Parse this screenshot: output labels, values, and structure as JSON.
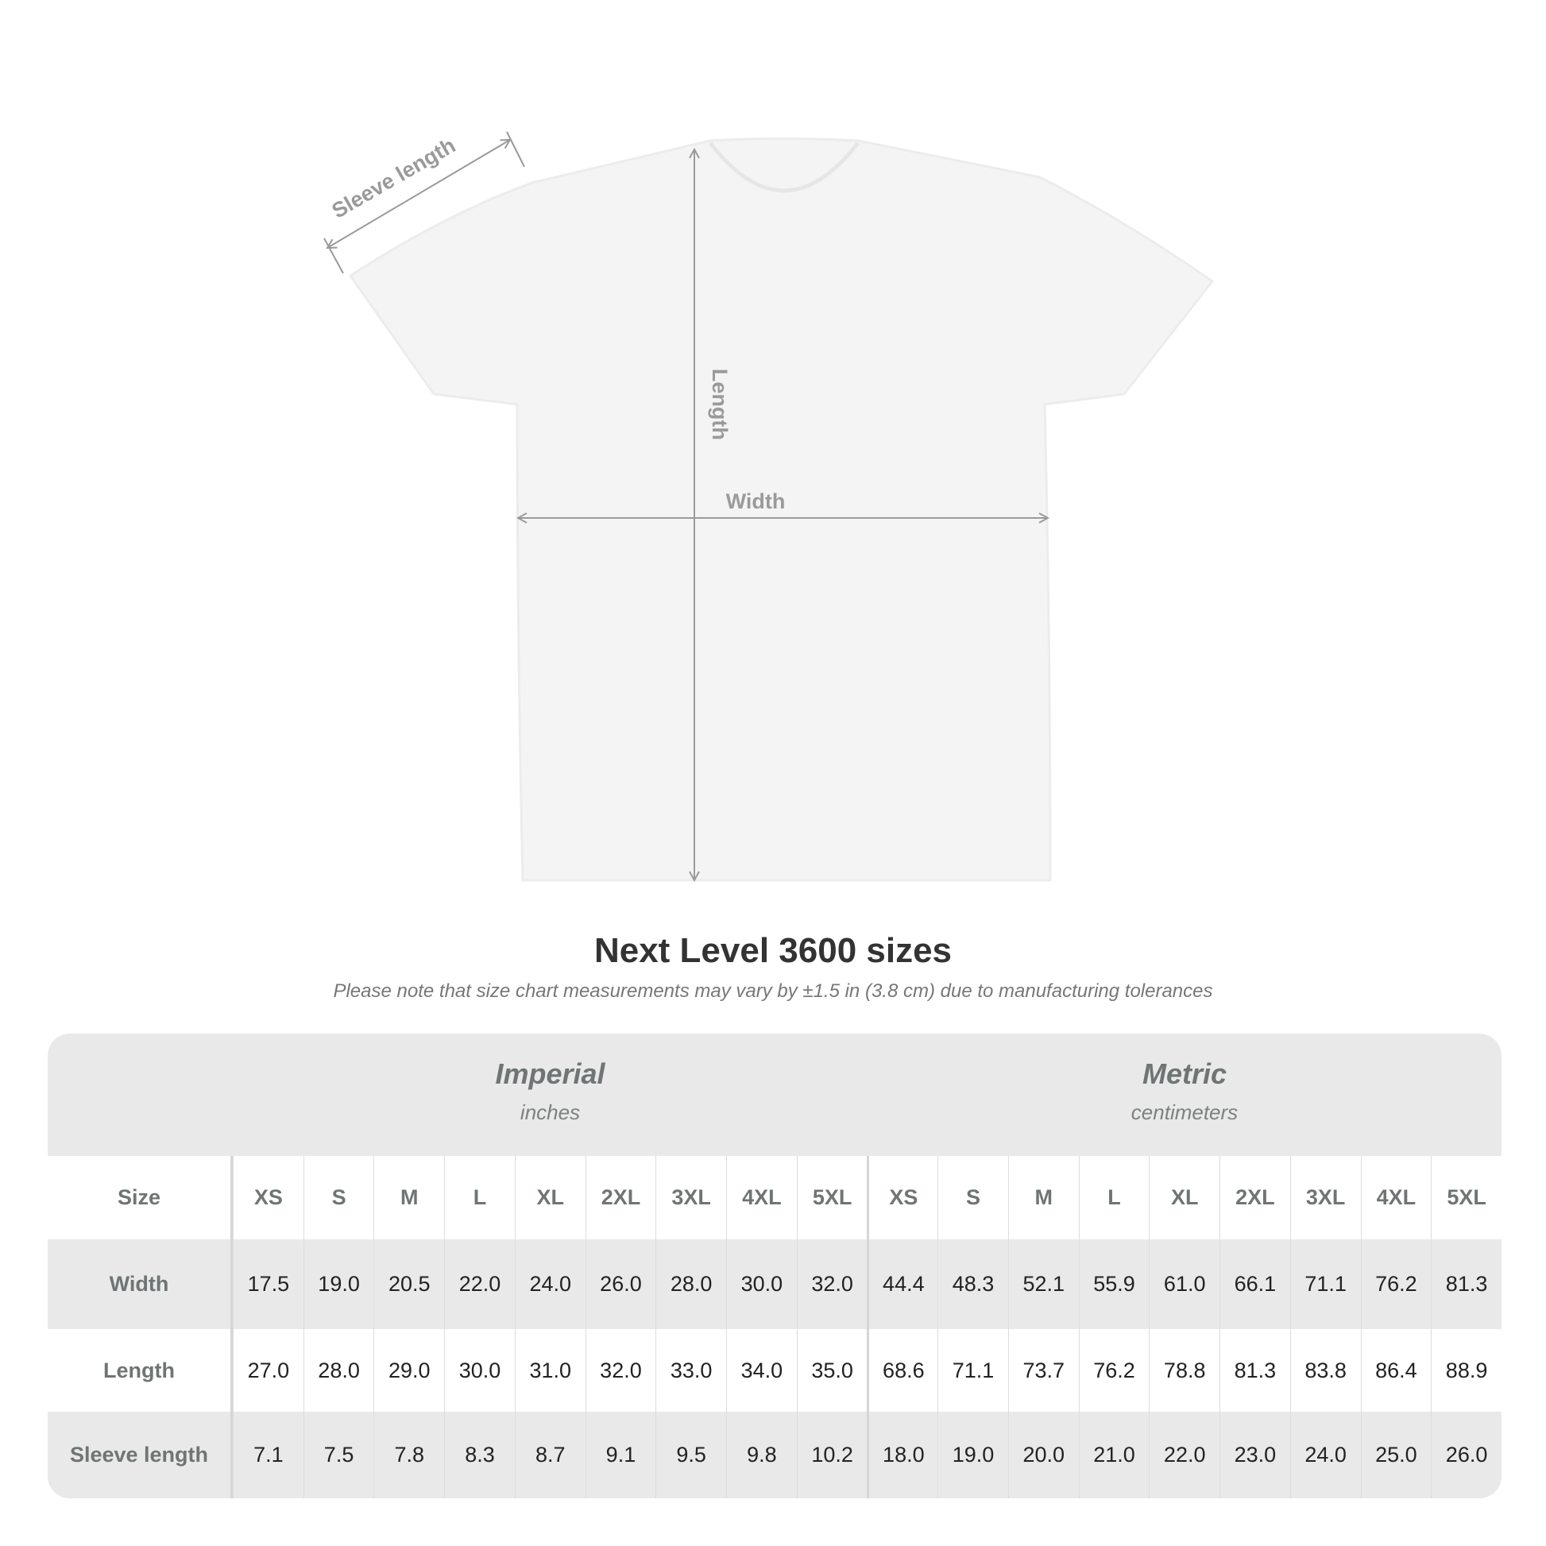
{
  "diagram": {
    "labels": {
      "sleeve": "Sleeve length",
      "length": "Length",
      "width": "Width"
    },
    "shirt_color": "#f4f4f4",
    "arrow_color": "#9a9a9a"
  },
  "title": "Next Level 3600 sizes",
  "subtitle": "Please note that size chart measurements may vary by ±1.5 in (3.8 cm) due to manufacturing tolerances",
  "table": {
    "imperial": {
      "label": "Imperial",
      "unit": "inches"
    },
    "metric": {
      "label": "Metric",
      "unit": "centimeters"
    },
    "size_label": "Size",
    "sizes": [
      "XS",
      "S",
      "M",
      "L",
      "XL",
      "2XL",
      "3XL",
      "4XL",
      "5XL"
    ],
    "rows": [
      {
        "label": "Width",
        "imperial": [
          "17.5",
          "19.0",
          "20.5",
          "22.0",
          "24.0",
          "26.0",
          "28.0",
          "30.0",
          "32.0"
        ],
        "metric": [
          "44.4",
          "48.3",
          "52.1",
          "55.9",
          "61.0",
          "66.1",
          "71.1",
          "76.2",
          "81.3"
        ]
      },
      {
        "label": "Length",
        "imperial": [
          "27.0",
          "28.0",
          "29.0",
          "30.0",
          "31.0",
          "32.0",
          "33.0",
          "34.0",
          "35.0"
        ],
        "metric": [
          "68.6",
          "71.1",
          "73.7",
          "76.2",
          "78.8",
          "81.3",
          "83.8",
          "86.4",
          "88.9"
        ]
      },
      {
        "label": "Sleeve length",
        "imperial": [
          "7.1",
          "7.5",
          "7.8",
          "8.3",
          "8.7",
          "9.1",
          "9.5",
          "9.8",
          "10.2"
        ],
        "metric": [
          "18.0",
          "19.0",
          "20.0",
          "21.0",
          "22.0",
          "23.0",
          "24.0",
          "25.0",
          "26.0"
        ]
      }
    ]
  }
}
